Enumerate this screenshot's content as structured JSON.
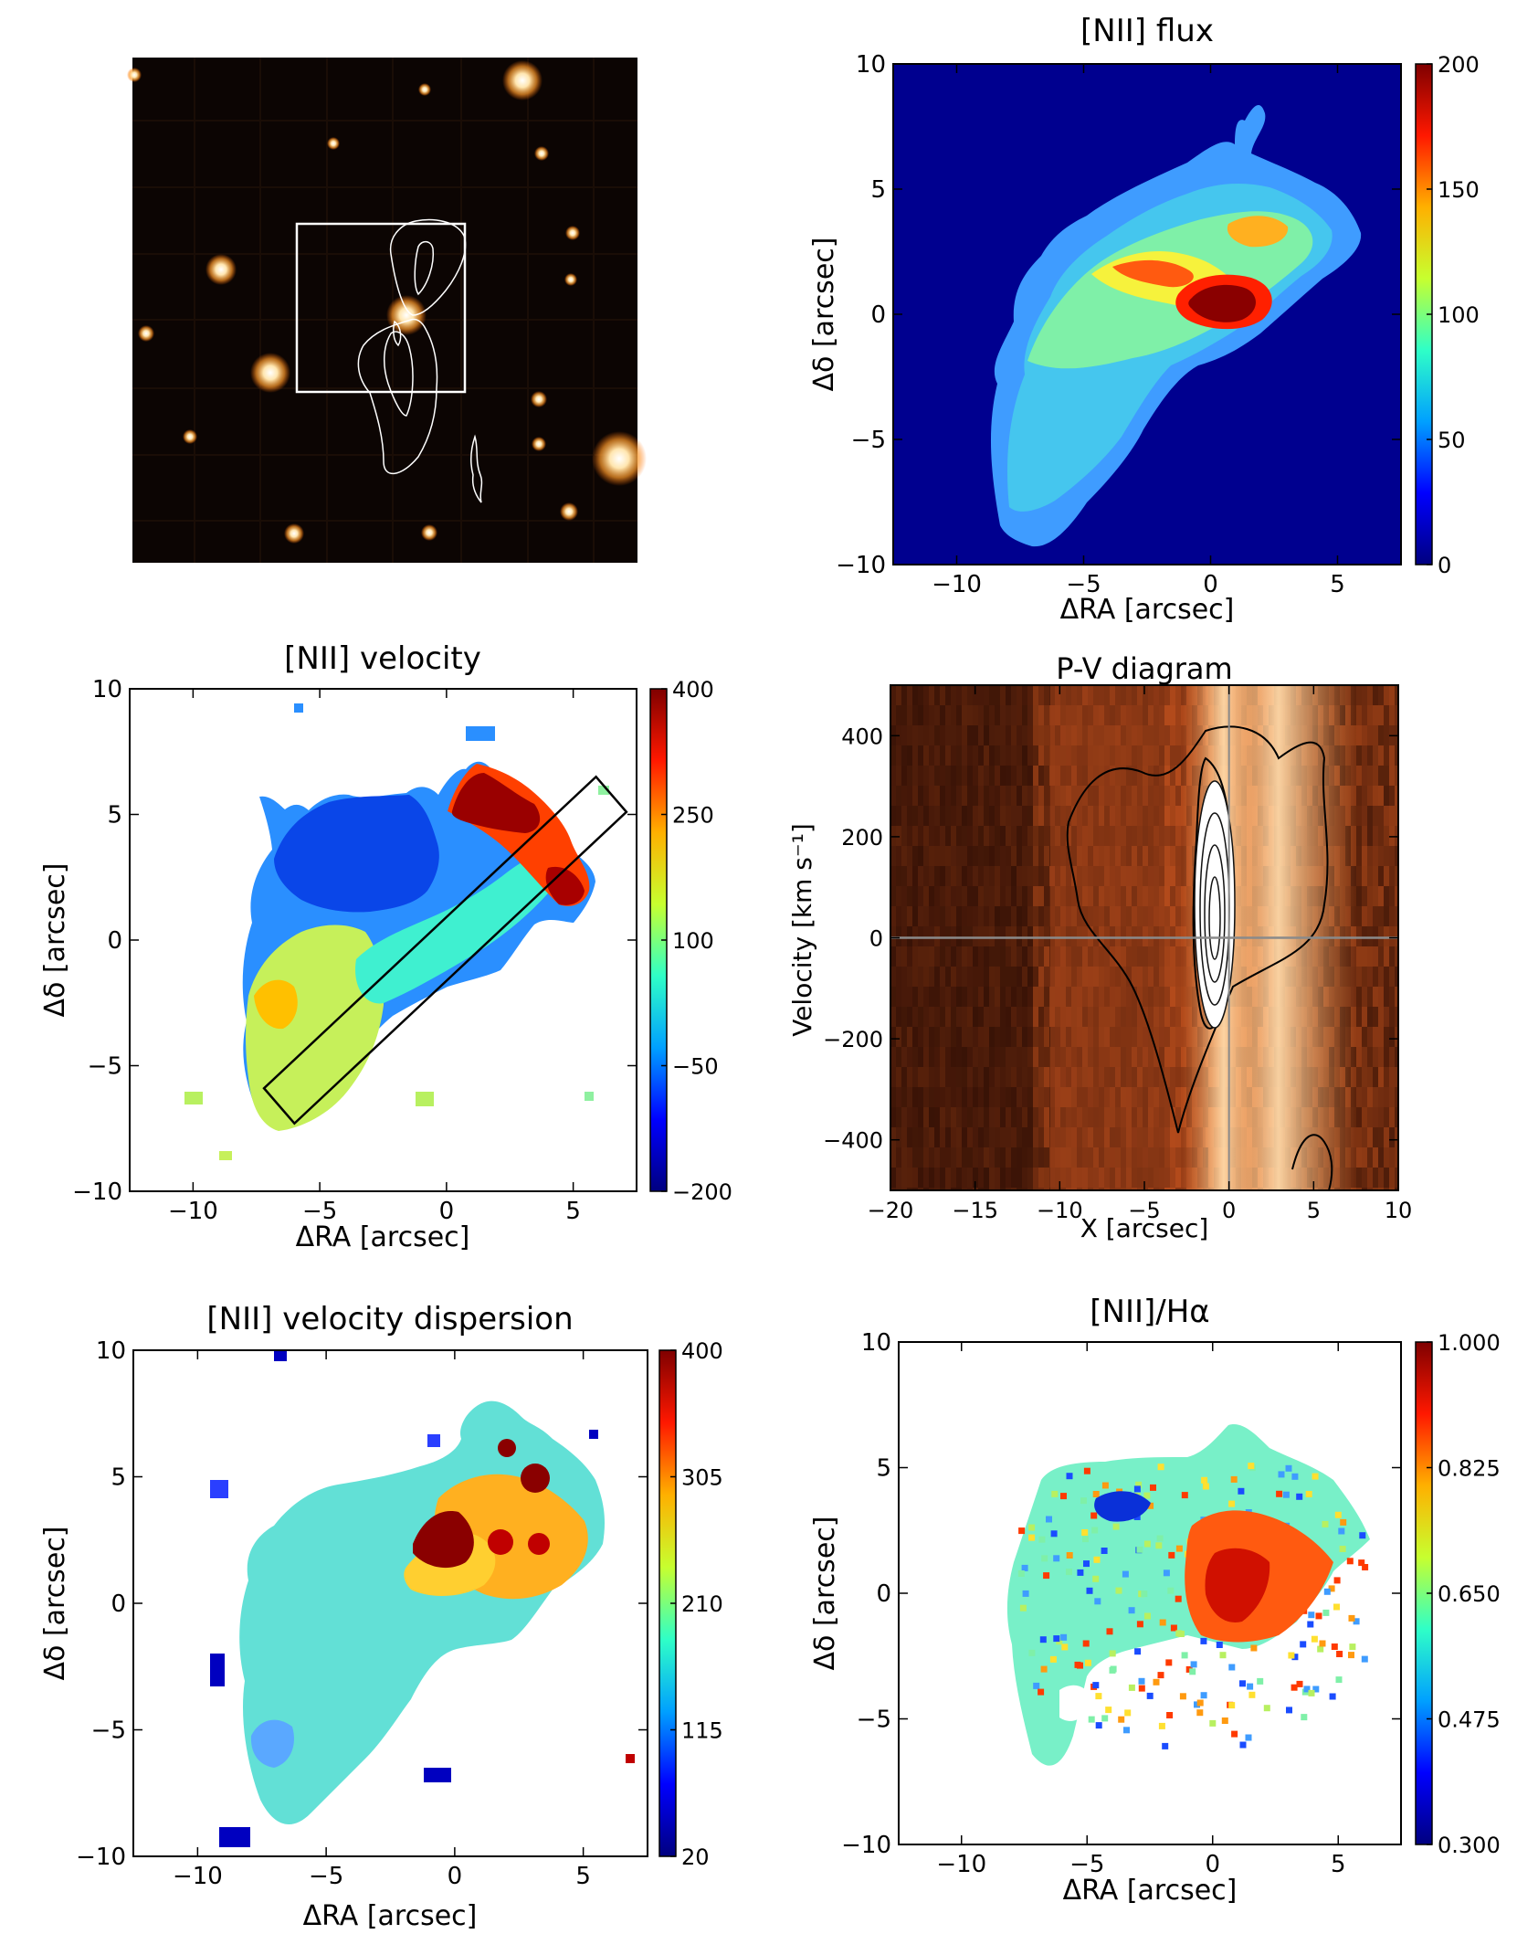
{
  "figure": {
    "image_panel": {
      "name": "optical image with contours"
    },
    "colorbar_gradient": [
      "#00007f",
      "#0000ff",
      "#00a0ff",
      "#2fffc7",
      "#c7ff2f",
      "#ffb000",
      "#ff1800",
      "#7f0000"
    ]
  },
  "chart_data": [
    {
      "id": "flux",
      "type": "heatmap",
      "title": "[NII] flux",
      "xlabel": "ΔRA [arcsec]",
      "ylabel": "Δδ [arcsec]",
      "xlim": [
        -12.5,
        7.5
      ],
      "ylim": [
        -10,
        10
      ],
      "xticks": [
        {
          "v": -10,
          "t": "−10"
        },
        {
          "v": -5,
          "t": "−5"
        },
        {
          "v": 0,
          "t": "0"
        },
        {
          "v": 5,
          "t": "5"
        }
      ],
      "yticks": [
        {
          "v": -10,
          "t": "−10"
        },
        {
          "v": -5,
          "t": "−5"
        },
        {
          "v": 0,
          "t": "0"
        },
        {
          "v": 5,
          "t": "5"
        },
        {
          "v": 10,
          "t": "10"
        }
      ],
      "colorbar": {
        "min": 0,
        "max": 200,
        "ticks": [
          {
            "v": 0,
            "t": "0"
          },
          {
            "v": 50,
            "t": "50"
          },
          {
            "v": 100,
            "t": "100"
          },
          {
            "v": 150,
            "t": "150"
          },
          {
            "v": 200,
            "t": "200"
          }
        ]
      }
    },
    {
      "id": "velocity",
      "type": "heatmap",
      "title": "[NII] velocity",
      "xlabel": "ΔRA [arcsec]",
      "ylabel": "Δδ [arcsec]",
      "xlim": [
        -12.5,
        7.5
      ],
      "ylim": [
        -10,
        10
      ],
      "xticks": [
        {
          "v": -10,
          "t": "−10"
        },
        {
          "v": -5,
          "t": "−5"
        },
        {
          "v": 0,
          "t": "0"
        },
        {
          "v": 5,
          "t": "5"
        }
      ],
      "yticks": [
        {
          "v": -10,
          "t": "−10"
        },
        {
          "v": -5,
          "t": "−5"
        },
        {
          "v": 0,
          "t": "0"
        },
        {
          "v": 5,
          "t": "5"
        },
        {
          "v": 10,
          "t": "10"
        }
      ],
      "colorbar": {
        "min": -200,
        "max": 400,
        "ticks": [
          {
            "v": -200,
            "t": "−200"
          },
          {
            "v": -50,
            "t": "−50"
          },
          {
            "v": 100,
            "t": "100"
          },
          {
            "v": 250,
            "t": "250"
          },
          {
            "v": 400,
            "t": "400"
          }
        ]
      },
      "slit": [
        [
          -7.2,
          -5.9
        ],
        [
          -6,
          -7.3
        ],
        [
          7.1,
          5.1
        ],
        [
          5.9,
          6.5
        ]
      ]
    },
    {
      "id": "pv",
      "type": "heatmap",
      "title": "P-V diagram",
      "xlabel": "X [arcsec]",
      "ylabel": "Velocity [km s⁻¹]",
      "xlim": [
        -20,
        10
      ],
      "ylim": [
        -500,
        500
      ],
      "xticks": [
        {
          "v": -20,
          "t": "−20"
        },
        {
          "v": -15,
          "t": "−15"
        },
        {
          "v": -10,
          "t": "−10"
        },
        {
          "v": -5,
          "t": "−5"
        },
        {
          "v": 0,
          "t": "0"
        },
        {
          "v": 5,
          "t": "5"
        },
        {
          "v": 10,
          "t": "10"
        }
      ],
      "yticks": [
        {
          "v": -400,
          "t": "−400"
        },
        {
          "v": -200,
          "t": "−200"
        },
        {
          "v": 0,
          "t": "0"
        },
        {
          "v": 200,
          "t": "200"
        },
        {
          "v": 400,
          "t": "400"
        }
      ]
    },
    {
      "id": "dispersion",
      "type": "heatmap",
      "title": "[NII] velocity dispersion",
      "xlabel": "ΔRA [arcsec]",
      "ylabel": "Δδ [arcsec]",
      "xlim": [
        -12.5,
        7.5
      ],
      "ylim": [
        -10,
        10
      ],
      "xticks": [
        {
          "v": -10,
          "t": "−10"
        },
        {
          "v": -5,
          "t": "−5"
        },
        {
          "v": 0,
          "t": "0"
        },
        {
          "v": 5,
          "t": "5"
        }
      ],
      "yticks": [
        {
          "v": -10,
          "t": "−10"
        },
        {
          "v": -5,
          "t": "−5"
        },
        {
          "v": 0,
          "t": "0"
        },
        {
          "v": 5,
          "t": "5"
        },
        {
          "v": 10,
          "t": "10"
        }
      ],
      "colorbar": {
        "min": 20,
        "max": 400,
        "ticks": [
          {
            "v": 20,
            "t": "20"
          },
          {
            "v": 115,
            "t": "115"
          },
          {
            "v": 210,
            "t": "210"
          },
          {
            "v": 305,
            "t": "305"
          },
          {
            "v": 400,
            "t": "400"
          }
        ]
      }
    },
    {
      "id": "ratio",
      "type": "heatmap",
      "title": "[NII]/Hα",
      "xlabel": "ΔRA [arcsec]",
      "ylabel": "Δδ [arcsec]",
      "xlim": [
        -12.5,
        7.5
      ],
      "ylim": [
        -10,
        10
      ],
      "xticks": [
        {
          "v": -10,
          "t": "−10"
        },
        {
          "v": -5,
          "t": "−5"
        },
        {
          "v": 0,
          "t": "0"
        },
        {
          "v": 5,
          "t": "5"
        }
      ],
      "yticks": [
        {
          "v": -10,
          "t": "−10"
        },
        {
          "v": -5,
          "t": "−5"
        },
        {
          "v": 0,
          "t": "0"
        },
        {
          "v": 5,
          "t": "5"
        },
        {
          "v": 10,
          "t": "10"
        }
      ],
      "colorbar": {
        "min": 0.3,
        "max": 1.0,
        "ticks": [
          {
            "v": 0.3,
            "t": "0.300"
          },
          {
            "v": 0.475,
            "t": "0.475"
          },
          {
            "v": 0.65,
            "t": "0.650"
          },
          {
            "v": 0.825,
            "t": "0.825"
          },
          {
            "v": 1.0,
            "t": "1.000"
          }
        ]
      }
    }
  ]
}
